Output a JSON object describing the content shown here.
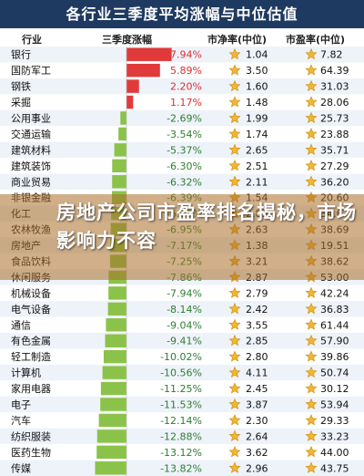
{
  "header": {
    "title": "各行业三季度平均涨幅与中位估值",
    "columns": [
      "行业",
      "三季度涨幅",
      "市净率(中位)",
      "市盈率(中位)"
    ]
  },
  "overlay": {
    "headline": "房地产公司市盈率排名揭秘，市场影响力不容"
  },
  "colors": {
    "positive": "#e03a3a",
    "negative": "#8bc34a",
    "title_bg": "#1f3a60",
    "row_odd": "#eef3fa",
    "row_even": "#ffffff",
    "star": "#f2b632"
  },
  "chart_data": {
    "type": "table",
    "title": "各行业三季度平均涨幅与中位估值",
    "columns": [
      "行业",
      "三季度涨幅",
      "市净率(中位)",
      "市盈率(中位)"
    ],
    "rows": [
      {
        "industry": "银行",
        "change": "7.94%",
        "change_value": 7.94,
        "pb": "1.04",
        "pe": "7.82"
      },
      {
        "industry": "国防军工",
        "change": "5.89%",
        "change_value": 5.89,
        "pb": "3.50",
        "pe": "64.39"
      },
      {
        "industry": "钢铁",
        "change": "2.20%",
        "change_value": 2.2,
        "pb": "1.60",
        "pe": "31.03"
      },
      {
        "industry": "采掘",
        "change": "1.17%",
        "change_value": 1.17,
        "pb": "1.48",
        "pe": "28.06"
      },
      {
        "industry": "公用事业",
        "change": "-2.69%",
        "change_value": -2.69,
        "pb": "1.99",
        "pe": "25.73"
      },
      {
        "industry": "交通运输",
        "change": "-3.54%",
        "change_value": -3.54,
        "pb": "1.74",
        "pe": "23.88"
      },
      {
        "industry": "建筑材料",
        "change": "-5.37%",
        "change_value": -5.37,
        "pb": "2.65",
        "pe": "35.71"
      },
      {
        "industry": "建筑装饰",
        "change": "-6.30%",
        "change_value": -6.3,
        "pb": "2.51",
        "pe": "27.29"
      },
      {
        "industry": "商业贸易",
        "change": "-6.32%",
        "change_value": -6.32,
        "pb": "2.11",
        "pe": "36.20"
      },
      {
        "industry": "非银金融",
        "change": "-6.39%",
        "change_value": -6.39,
        "pb": "1.54",
        "pe": "20.60"
      },
      {
        "industry": "化工",
        "change": "-6.76%",
        "change_value": -6.76,
        "pb": "2.89",
        "pe": "34.67"
      },
      {
        "industry": "农林牧渔",
        "change": "-6.95%",
        "change_value": -6.95,
        "pb": "2.63",
        "pe": "38.69"
      },
      {
        "industry": "房地产",
        "change": "-7.17%",
        "change_value": -7.17,
        "pb": "1.38",
        "pe": "19.51"
      },
      {
        "industry": "食品饮料",
        "change": "-7.25%",
        "change_value": -7.25,
        "pb": "3.21",
        "pe": "38.62"
      },
      {
        "industry": "休闲服务",
        "change": "-7.86%",
        "change_value": -7.86,
        "pb": "2.87",
        "pe": "53.00"
      },
      {
        "industry": "机械设备",
        "change": "-7.94%",
        "change_value": -7.94,
        "pb": "2.79",
        "pe": "42.24"
      },
      {
        "industry": "电气设备",
        "change": "-8.14%",
        "change_value": -8.14,
        "pb": "2.42",
        "pe": "36.83"
      },
      {
        "industry": "通信",
        "change": "-9.04%",
        "change_value": -9.04,
        "pb": "3.55",
        "pe": "61.44"
      },
      {
        "industry": "有色金属",
        "change": "-9.41%",
        "change_value": -9.41,
        "pb": "2.85",
        "pe": "57.90"
      },
      {
        "industry": "轻工制造",
        "change": "-10.02%",
        "change_value": -10.02,
        "pb": "2.80",
        "pe": "39.86"
      },
      {
        "industry": "计算机",
        "change": "-10.56%",
        "change_value": -10.56,
        "pb": "4.11",
        "pe": "50.74"
      },
      {
        "industry": "家用电器",
        "change": "-11.25%",
        "change_value": -11.25,
        "pb": "2.45",
        "pe": "30.12"
      },
      {
        "industry": "电子",
        "change": "-11.53%",
        "change_value": -11.53,
        "pb": "3.87",
        "pe": "53.94"
      },
      {
        "industry": "汽车",
        "change": "-12.14%",
        "change_value": -12.14,
        "pb": "2.30",
        "pe": "29.33"
      },
      {
        "industry": "纺织服装",
        "change": "-12.88%",
        "change_value": -12.88,
        "pb": "2.64",
        "pe": "33.23"
      },
      {
        "industry": "医药生物",
        "change": "-13.12%",
        "change_value": -13.12,
        "pb": "3.62",
        "pe": "44.00"
      },
      {
        "industry": "传媒",
        "change": "-13.82%",
        "change_value": -13.82,
        "pb": "2.96",
        "pe": "43.75"
      }
    ],
    "xlim": [
      -14,
      8
    ]
  }
}
